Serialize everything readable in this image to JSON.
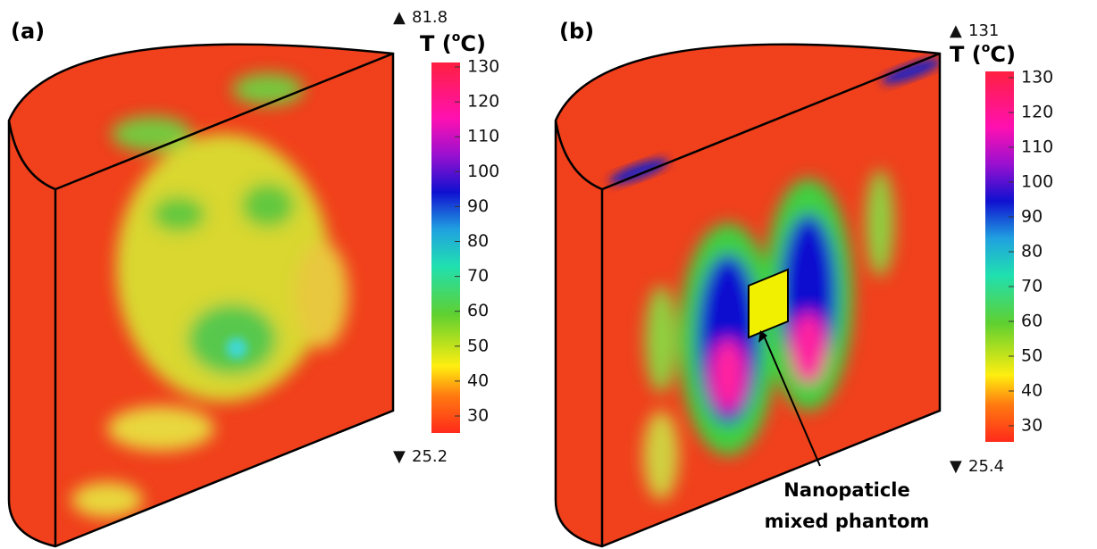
{
  "panels": [
    {
      "label": "(a)",
      "max": "81.8",
      "min": "25.2",
      "colorbar_title": [
        "T (",
        "o",
        "C)"
      ],
      "colorbar_ticks": [
        "130",
        "120",
        "110",
        "100",
        "90",
        "80",
        "70",
        "60",
        "50",
        "40",
        "30"
      ]
    },
    {
      "label": "(b)",
      "max": "131",
      "min": "25.4",
      "colorbar_title": [
        "T (",
        "o",
        "C)"
      ],
      "colorbar_ticks": [
        "130",
        "120",
        "110",
        "100",
        "90",
        "80",
        "70",
        "60",
        "50",
        "40",
        "30"
      ],
      "annotation": [
        "Nanopaticle",
        "mixed phantom"
      ]
    }
  ]
}
